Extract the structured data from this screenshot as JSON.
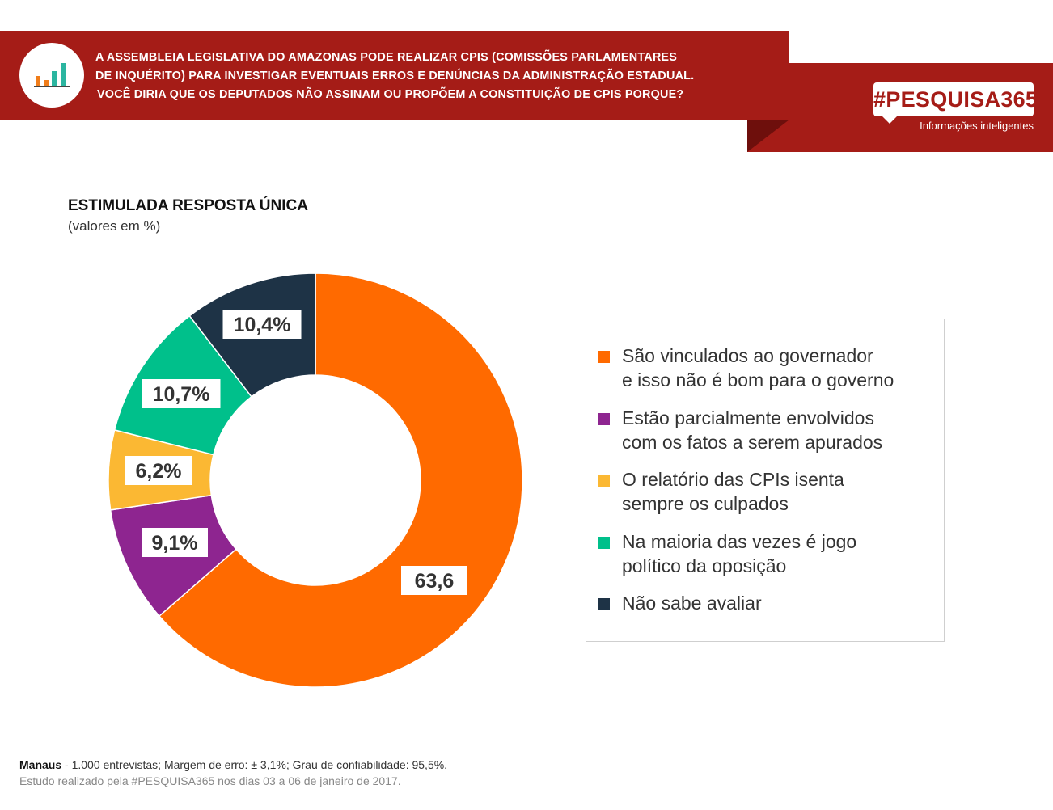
{
  "header": {
    "question_lines": [
      "A ASSEMBLEIA LEGISLATIVA DO AMAZONAS PODE REALIZAR CPIS (COMISSÕES PARLAMENTARES",
      "DE INQUÉRITO) PARA INVESTIGAR EVENTUAIS ERROS E DENÚNCIAS DA ADMINISTRAÇÃO ESTADUAL.",
      "VOCÊ DIRIA QUE OS DEPUTADOS NÃO ASSINAM OU PROPÕEM A CONSTITUIÇÃO DE CPIS PORQUE?"
    ],
    "brand": "#PESQUISA365",
    "tagline": "Informações inteligentes",
    "icon": "bar-chart-icon",
    "banner_color": "#a51c17"
  },
  "chart_data": {
    "type": "pie",
    "donut": true,
    "title": "ESTIMULADA RESPOSTA ÚNICA",
    "subtitle": "(valores em %)",
    "slices": [
      {
        "label": "São vinculados ao governador\ne isso não é bom para o governo",
        "value": 63.6,
        "display": "63,6",
        "color": "#ff6a00"
      },
      {
        "label": "Estão parcialmente envolvidos\ncom os fatos a serem apurados",
        "value": 9.1,
        "display": "9,1%",
        "color": "#8e2590"
      },
      {
        "label": "O relatório das CPIs isenta\nsempre os culpados",
        "value": 6.2,
        "display": "6,2%",
        "color": "#fbb833"
      },
      {
        "label": "Na maioria das vezes é jogo\npolítico da oposição",
        "value": 10.7,
        "display": "10,7%",
        "color": "#00c08b"
      },
      {
        "label": "Não sabe avaliar",
        "value": 10.4,
        "display": "10,4%",
        "color": "#1e3346"
      }
    ],
    "legend_position": "right"
  },
  "footer": {
    "city": "Manaus",
    "details": " - 1.000 entrevistas; Margem de erro: ± 3,1%; Grau de confiabilidade: 95,5%.",
    "study": "Estudo realizado pela #PESQUISA365 nos dias 03 a 06 de janeiro de 2017."
  }
}
